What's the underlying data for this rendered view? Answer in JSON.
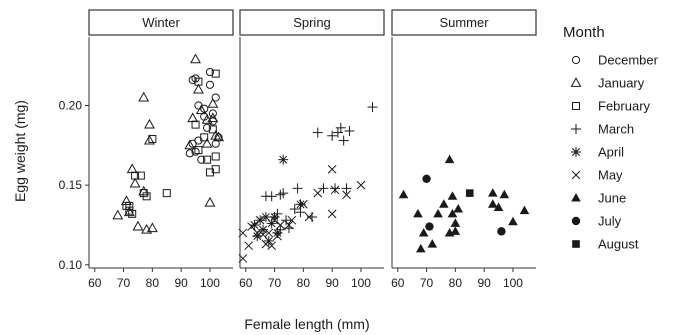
{
  "chart_data": {
    "type": "scatter",
    "xlabel": "Female length (mm)",
    "ylabel": "Egg weight (mg)",
    "xlim": [
      58,
      108
    ],
    "ylim": [
      0.098,
      0.243
    ],
    "x_ticks": [
      60,
      70,
      80,
      90,
      100
    ],
    "y_ticks": [
      0.1,
      0.15,
      0.2
    ],
    "y_tick_labels": [
      "0.10",
      "0.15",
      "0.20"
    ],
    "grid": false,
    "legend_position": "right",
    "legend_title": "Month",
    "facets": [
      {
        "label": "Winter",
        "months": [
          "December",
          "January",
          "February"
        ]
      },
      {
        "label": "Spring",
        "months": [
          "March",
          "April",
          "May"
        ]
      },
      {
        "label": "Summer",
        "months": [
          "June",
          "July",
          "August"
        ]
      }
    ],
    "series": [
      {
        "name": "December",
        "marker": "circle-open",
        "facet": "Winter",
        "points": [
          [
            93,
            0.17
          ],
          [
            94,
            0.176
          ],
          [
            94,
            0.216
          ],
          [
            95,
            0.171
          ],
          [
            95,
            0.217
          ],
          [
            96,
            0.178
          ],
          [
            96,
            0.2
          ],
          [
            97,
            0.166
          ],
          [
            98,
            0.193
          ],
          [
            98,
            0.198
          ],
          [
            99,
            0.186
          ],
          [
            100,
            0.213
          ],
          [
            100,
            0.221
          ],
          [
            101,
            0.19
          ],
          [
            101,
            0.195
          ],
          [
            102,
            0.176
          ],
          [
            102,
            0.205
          ],
          [
            103,
            0.18
          ]
        ]
      },
      {
        "name": "January",
        "marker": "triangle-open",
        "facet": "Winter",
        "points": [
          [
            68,
            0.131
          ],
          [
            71,
            0.14
          ],
          [
            72,
            0.133
          ],
          [
            73,
            0.16
          ],
          [
            74,
            0.151
          ],
          [
            75,
            0.124
          ],
          [
            77,
            0.146
          ],
          [
            77,
            0.205
          ],
          [
            78,
            0.122
          ],
          [
            79,
            0.178
          ],
          [
            79,
            0.188
          ],
          [
            80,
            0.123
          ],
          [
            93,
            0.175
          ],
          [
            94,
            0.192
          ],
          [
            95,
            0.229
          ],
          [
            96,
            0.21
          ],
          [
            97,
            0.197
          ],
          [
            99,
            0.176
          ],
          [
            99,
            0.191
          ],
          [
            100,
            0.139
          ],
          [
            101,
            0.192
          ],
          [
            101,
            0.201
          ],
          [
            102,
            0.181
          ],
          [
            103,
            0.18
          ]
        ]
      },
      {
        "name": "February",
        "marker": "square-open",
        "facet": "Winter",
        "points": [
          [
            71,
            0.137
          ],
          [
            72,
            0.134
          ],
          [
            72,
            0.137
          ],
          [
            73,
            0.132
          ],
          [
            74,
            0.156
          ],
          [
            76,
            0.156
          ],
          [
            77,
            0.145
          ],
          [
            78,
            0.143
          ],
          [
            80,
            0.179
          ],
          [
            85,
            0.145
          ],
          [
            95,
            0.188
          ],
          [
            96,
            0.172
          ],
          [
            96,
            0.215
          ],
          [
            98,
            0.18
          ],
          [
            99,
            0.166
          ],
          [
            100,
            0.158
          ],
          [
            101,
            0.185
          ],
          [
            102,
            0.22
          ],
          [
            102,
            0.168
          ],
          [
            102,
            0.16
          ]
        ]
      },
      {
        "name": "March",
        "marker": "plus",
        "facet": "Spring",
        "points": [
          [
            67,
            0.143
          ],
          [
            69,
            0.143
          ],
          [
            71,
            0.132
          ],
          [
            72,
            0.144
          ],
          [
            72,
            0.122
          ],
          [
            73,
            0.145
          ],
          [
            74,
            0.128
          ],
          [
            75,
            0.123
          ],
          [
            77,
            0.135
          ],
          [
            78,
            0.148
          ],
          [
            79,
            0.133
          ],
          [
            83,
            0.13
          ],
          [
            85,
            0.183
          ],
          [
            87,
            0.148
          ],
          [
            90,
            0.181
          ],
          [
            91,
            0.148
          ],
          [
            92,
            0.183
          ],
          [
            93,
            0.186
          ],
          [
            94,
            0.178
          ],
          [
            95,
            0.148
          ],
          [
            96,
            0.184
          ],
          [
            104,
            0.199
          ]
        ]
      },
      {
        "name": "April",
        "marker": "asterisk",
        "facet": "Spring",
        "points": [
          [
            63,
            0.125
          ],
          [
            64,
            0.118
          ],
          [
            65,
            0.128
          ],
          [
            66,
            0.122
          ],
          [
            67,
            0.13
          ],
          [
            68,
            0.115
          ],
          [
            69,
            0.126
          ],
          [
            70,
            0.13
          ],
          [
            71,
            0.12
          ],
          [
            73,
            0.166
          ],
          [
            79,
            0.138
          ]
        ]
      },
      {
        "name": "May",
        "marker": "x",
        "facet": "Spring",
        "points": [
          [
            59,
            0.104
          ],
          [
            59,
            0.12
          ],
          [
            61,
            0.112
          ],
          [
            62,
            0.124
          ],
          [
            64,
            0.12
          ],
          [
            65,
            0.128
          ],
          [
            66,
            0.119
          ],
          [
            67,
            0.113
          ],
          [
            68,
            0.12
          ],
          [
            69,
            0.112
          ],
          [
            70,
            0.128
          ],
          [
            71,
            0.118
          ],
          [
            72,
            0.125
          ],
          [
            75,
            0.125
          ],
          [
            76,
            0.128
          ],
          [
            80,
            0.138
          ],
          [
            82,
            0.13
          ],
          [
            85,
            0.145
          ],
          [
            90,
            0.132
          ],
          [
            90,
            0.16
          ],
          [
            91,
            0.147
          ],
          [
            95,
            0.144
          ],
          [
            100,
            0.15
          ]
        ]
      },
      {
        "name": "June",
        "marker": "triangle-filled",
        "facet": "Summer",
        "points": [
          [
            62,
            0.144
          ],
          [
            67,
            0.132
          ],
          [
            68,
            0.11
          ],
          [
            69,
            0.12
          ],
          [
            72,
            0.113
          ],
          [
            74,
            0.132
          ],
          [
            76,
            0.138
          ],
          [
            78,
            0.12
          ],
          [
            78,
            0.166
          ],
          [
            79,
            0.132
          ],
          [
            79,
            0.143
          ],
          [
            80,
            0.121
          ],
          [
            80,
            0.126
          ],
          [
            81,
            0.135
          ],
          [
            93,
            0.145
          ],
          [
            93,
            0.138
          ],
          [
            95,
            0.136
          ],
          [
            97,
            0.144
          ],
          [
            100,
            0.127
          ],
          [
            104,
            0.134
          ]
        ]
      },
      {
        "name": "July",
        "marker": "circle-filled",
        "facet": "Summer",
        "points": [
          [
            70,
            0.154
          ],
          [
            71,
            0.124
          ],
          [
            96,
            0.121
          ]
        ]
      },
      {
        "name": "August",
        "marker": "square-filled",
        "facet": "Summer",
        "points": [
          [
            85,
            0.145
          ]
        ]
      }
    ]
  }
}
